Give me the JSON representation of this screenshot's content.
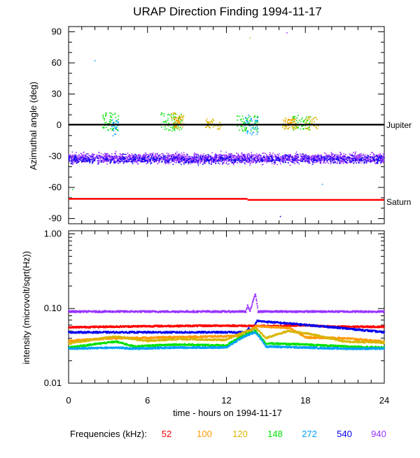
{
  "title": "URAP Direction Finding  1994-11-17",
  "x_axis": {
    "label": "time - hours on 1994-11-17",
    "range": [
      0,
      24
    ],
    "ticks": [
      0,
      6,
      12,
      18,
      24
    ],
    "tick_labels": [
      "0",
      "6",
      "12",
      "18",
      "24"
    ]
  },
  "legend": {
    "prefix": "Frequencies (kHz):",
    "items": [
      {
        "label": "52",
        "color": "#ff0000"
      },
      {
        "label": "100",
        "color": "#ff9900"
      },
      {
        "label": "120",
        "color": "#d8b400"
      },
      {
        "label": "148",
        "color": "#00e000"
      },
      {
        "label": "272",
        "color": "#00a0ff"
      },
      {
        "label": "540",
        "color": "#0000ee"
      },
      {
        "label": "940",
        "color": "#9933ff"
      }
    ]
  },
  "chart_data": [
    {
      "type": "scatter",
      "ylabel": "Azimuthal angle (deg)",
      "xlim": [
        0,
        24
      ],
      "ylim": [
        -95,
        95
      ],
      "yticks": [
        90,
        60,
        30,
        0,
        -30,
        -60,
        -90
      ],
      "ytick_labels": [
        "90",
        "60",
        "30",
        "0",
        "-30",
        "-60",
        "-90"
      ],
      "reference_lines": [
        {
          "name": "Jupiter",
          "color": "#000000",
          "segments": [
            {
              "x": [
                0,
                24
              ],
              "y": [
                0.5,
                0.5
              ]
            }
          ]
        },
        {
          "name": "Saturn",
          "color": "#ff0000",
          "segments": [
            {
              "x": [
                0,
                13.6
              ],
              "y": [
                -71,
                -71
              ]
            },
            {
              "x": [
                13.6,
                24
              ],
              "y": [
                -72,
                -72
              ]
            }
          ]
        }
      ],
      "series": [
        {
          "name": "940",
          "color": "#9933ff",
          "pattern": "band",
          "x": [
            0,
            24
          ],
          "center": -32,
          "spread": 7
        },
        {
          "name": "540",
          "color": "#0000ee",
          "pattern": "band",
          "x": [
            0,
            24
          ],
          "center": -33,
          "spread": 6
        },
        {
          "name": "148",
          "color": "#00e000",
          "pattern": "clusters",
          "clusters": [
            {
              "x": [
                2.6,
                3.8
              ],
              "y": [
                -5,
                12
              ]
            },
            {
              "x": [
                7.0,
                8.7
              ],
              "y": [
                -6,
                12
              ]
            },
            {
              "x": [
                12.8,
                14.4
              ],
              "y": [
                -6,
                10
              ]
            },
            {
              "x": [
                17.0,
                18.4
              ],
              "y": [
                -5,
                10
              ]
            }
          ]
        },
        {
          "name": "272",
          "color": "#00a0ff",
          "pattern": "clusters",
          "clusters": [
            {
              "x": [
                3.3,
                3.9
              ],
              "y": [
                -15,
                6
              ]
            },
            {
              "x": [
                13.4,
                14.4
              ],
              "y": [
                -10,
                10
              ]
            }
          ]
        },
        {
          "name": "120",
          "color": "#d8b400",
          "pattern": "clusters",
          "clusters": [
            {
              "x": [
                7.8,
                8.8
              ],
              "y": [
                -4,
                12
              ]
            },
            {
              "x": [
                10.4,
                11.6
              ],
              "y": [
                -4,
                6
              ]
            },
            {
              "x": [
                16.2,
                17.4
              ],
              "y": [
                -4,
                8
              ]
            },
            {
              "x": [
                18.0,
                19.0
              ],
              "y": [
                -4,
                8
              ]
            }
          ]
        },
        {
          "name": "100",
          "color": "#ff9900",
          "pattern": "clusters",
          "clusters": [
            {
              "x": [
                8.0,
                8.6
              ],
              "y": [
                -3,
                8
              ]
            },
            {
              "x": [
                16.5,
                17.2
              ],
              "y": [
                -2,
                6
              ]
            }
          ]
        }
      ],
      "outliers": [
        {
          "x": 2.0,
          "y": 62,
          "color": "#00a0ff"
        },
        {
          "x": 13.8,
          "y": 84,
          "color": "#d8b400"
        },
        {
          "x": 16.6,
          "y": 89,
          "color": "#9933ff"
        },
        {
          "x": 0.3,
          "y": -62,
          "color": "#00e000"
        },
        {
          "x": 19.3,
          "y": -57,
          "color": "#00a0ff"
        },
        {
          "x": 16.1,
          "y": -88,
          "color": "#0000ee"
        }
      ]
    },
    {
      "type": "line",
      "ylabel": "intensity (microvolt/sqrt(Hz))",
      "yscale": "log",
      "xlim": [
        0,
        24
      ],
      "ylim": [
        0.01,
        1.1
      ],
      "yticks": [
        1.0,
        0.1,
        0.01
      ],
      "ytick_labels": [
        "1.00",
        "0.10",
        "0.01"
      ],
      "series": [
        {
          "name": "940",
          "color": "#9933ff",
          "x": [
            0,
            13.5,
            13.6,
            13.8,
            14.0,
            14.2,
            14.4,
            24
          ],
          "y": [
            0.091,
            0.091,
            0.11,
            0.091,
            0.12,
            0.16,
            0.091,
            0.091
          ]
        },
        {
          "name": "52",
          "color": "#ff0000",
          "x": [
            0,
            6,
            12,
            16,
            18,
            20,
            24
          ],
          "y": [
            0.056,
            0.058,
            0.059,
            0.058,
            0.06,
            0.057,
            0.057
          ]
        },
        {
          "name": "540",
          "color": "#0000ee",
          "x": [
            0,
            13.5,
            13.7,
            14.0,
            14.3,
            24
          ],
          "y": [
            0.048,
            0.048,
            0.055,
            0.048,
            0.068,
            0.048
          ]
        },
        {
          "name": "100",
          "color": "#ff9900",
          "x": [
            0,
            3.5,
            7,
            10,
            13.5,
            14.2,
            16.8,
            18,
            21,
            24
          ],
          "y": [
            0.037,
            0.04,
            0.041,
            0.042,
            0.043,
            0.058,
            0.055,
            0.041,
            0.04,
            0.036
          ]
        },
        {
          "name": "120",
          "color": "#d8b400",
          "x": [
            0,
            3.5,
            6,
            8.5,
            12,
            13.6,
            14.2,
            15,
            16.7,
            18.2,
            21,
            24
          ],
          "y": [
            0.034,
            0.042,
            0.037,
            0.039,
            0.038,
            0.05,
            0.055,
            0.04,
            0.05,
            0.046,
            0.036,
            0.035
          ]
        },
        {
          "name": "148",
          "color": "#00e000",
          "x": [
            0,
            3.6,
            5,
            8,
            12,
            13.6,
            14.2,
            15,
            18,
            21,
            24
          ],
          "y": [
            0.03,
            0.036,
            0.031,
            0.033,
            0.032,
            0.046,
            0.05,
            0.034,
            0.033,
            0.031,
            0.03
          ]
        },
        {
          "name": "272",
          "color": "#00a0ff",
          "x": [
            0,
            3.5,
            5,
            8,
            12,
            13.6,
            14.2,
            15,
            18,
            21,
            24
          ],
          "y": [
            0.029,
            0.03,
            0.029,
            0.03,
            0.03,
            0.044,
            0.048,
            0.031,
            0.03,
            0.029,
            0.029
          ]
        }
      ]
    }
  ]
}
